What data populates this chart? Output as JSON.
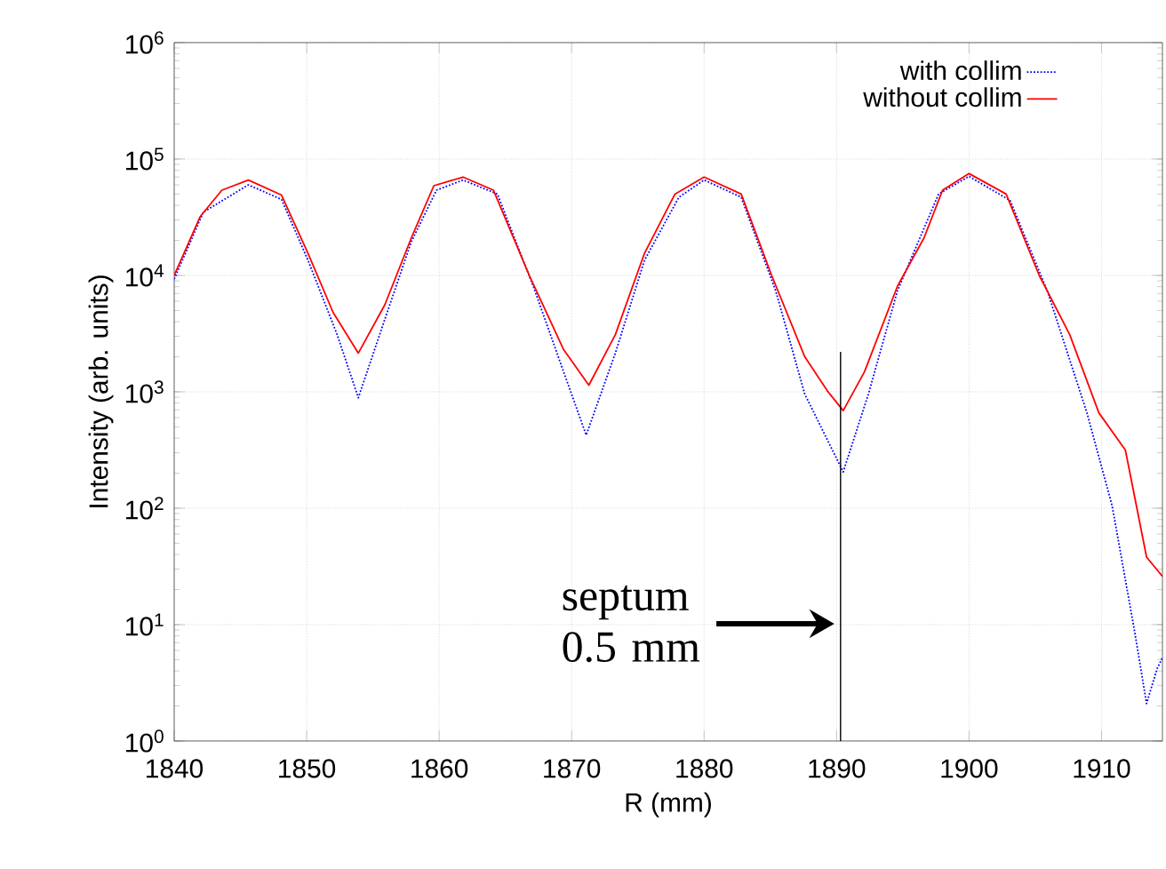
{
  "chart_data": {
    "type": "line",
    "xlabel": "R (mm)",
    "ylabel": "Intensity (arb. units)",
    "xlim": [
      1840,
      1914.6
    ],
    "xticks": [
      1840,
      1850,
      1860,
      1870,
      1880,
      1890,
      1900,
      1910
    ],
    "ylim": [
      1,
      1000000
    ],
    "yticks": [
      {
        "value": 1,
        "label": "10$^{0}$"
      },
      {
        "value": 10,
        "label": "10$^{1}$"
      },
      {
        "value": 100,
        "label": "10$^{2}$"
      },
      {
        "value": 1000,
        "label": "10$^{3}$"
      },
      {
        "value": 10000,
        "label": "10$^{4}$"
      },
      {
        "value": 100000,
        "label": "10$^{5}$"
      },
      {
        "value": 1000000,
        "label": "10$^{6}$"
      }
    ],
    "log": "y",
    "grid": true,
    "legend": "top right",
    "marker": "none",
    "series": [
      {
        "name": "with collim",
        "color": "#0000ff",
        "line_style": "dotted",
        "x": [
          1840,
          1842.2,
          1845.6,
          1848.1,
          1850.1,
          1852.3,
          1853.9,
          1855.7,
          1857.9,
          1859.8,
          1861.8,
          1864.4,
          1867.1,
          1869.4,
          1871.1,
          1873.3,
          1875.5,
          1878.1,
          1880.0,
          1882.8,
          1885.4,
          1887.6,
          1890.5,
          1892.4,
          1894.6,
          1897.7,
          1900.0,
          1903.1,
          1905.9,
          1908.9,
          1910.8,
          1912.5,
          1913.4,
          1914.2,
          1914.6
        ],
        "values": [
          9300,
          35000,
          60000,
          45000,
          13500,
          3100,
          890,
          3600,
          19500,
          54000,
          66000,
          50000,
          8100,
          1480,
          425,
          2150,
          13500,
          47000,
          66000,
          47000,
          7400,
          955,
          205,
          955,
          7400,
          50000,
          71000,
          44000,
          7400,
          660,
          105,
          8.7,
          2.1,
          4.2,
          5.2
        ]
      },
      {
        "name": "without collim",
        "color": "#ff0000",
        "line_style": "solid",
        "x": [
          1840,
          1841.96,
          1843.6,
          1845.6,
          1848.1,
          1850.1,
          1852.0,
          1853.9,
          1855.9,
          1857.9,
          1859.6,
          1861.8,
          1864.1,
          1866.8,
          1869.4,
          1871.3,
          1873.3,
          1875.5,
          1877.8,
          1880.0,
          1882.8,
          1885.1,
          1887.6,
          1889.3,
          1890.5,
          1892.1,
          1894.6,
          1896.6,
          1898.0,
          1900.0,
          1902.8,
          1905.3,
          1907.6,
          1909.8,
          1911.8,
          1913.4,
          1914.6
        ],
        "values": [
          10000,
          32000,
          54000,
          66000,
          49000,
          15500,
          4800,
          2150,
          5600,
          21000,
          59000,
          70000,
          54000,
          10000,
          2300,
          1140,
          3100,
          15500,
          50000,
          70000,
          50000,
          10000,
          2000,
          1020,
          690,
          1480,
          8100,
          21000,
          54000,
          75000,
          50000,
          10000,
          3100,
          660,
          316,
          38,
          26
        ]
      },
      {
        "type": "line",
        "color": "#000000",
        "line_style": "solid",
        "x": [
          1890.3,
          1890.3
        ],
        "values": [
          1,
          2200
        ]
      }
    ],
    "annotations": [
      "septum 0.5 mm"
    ]
  }
}
